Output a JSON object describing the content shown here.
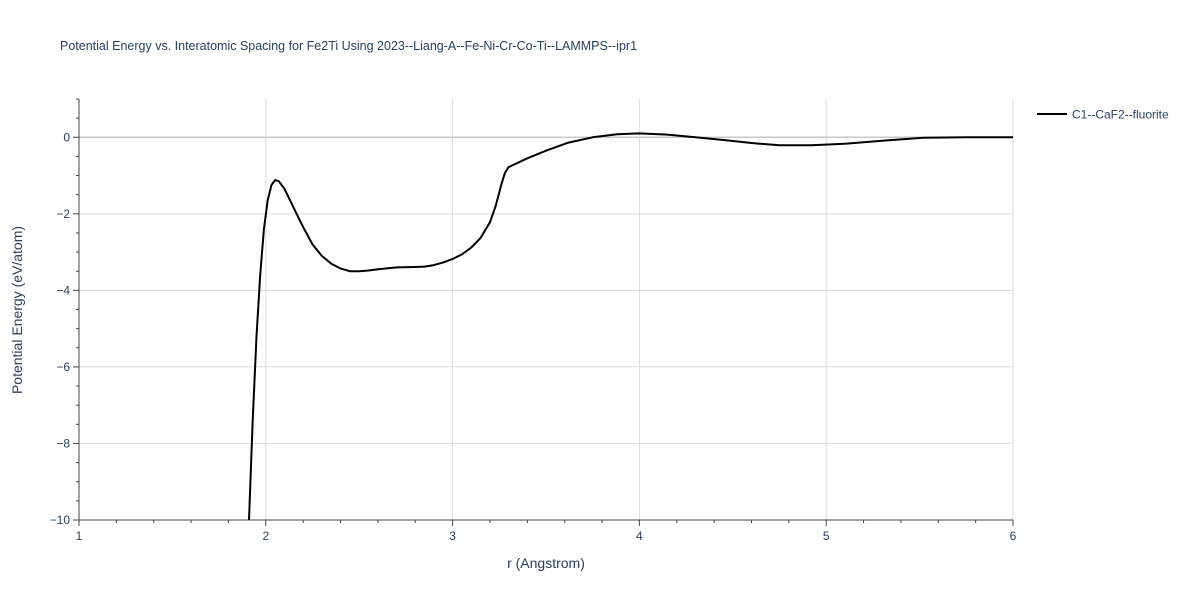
{
  "chart_data": {
    "type": "line",
    "title": "Potential Energy vs. Interatomic Spacing for Fe2Ti Using 2023--Liang-A--Fe-Ni-Cr-Co-Ti--LAMMPS--ipr1",
    "xlabel": "r (Angstrom)",
    "ylabel": "Potential Energy (eV/atom)",
    "xlim": [
      1,
      6
    ],
    "ylim": [
      -10,
      1
    ],
    "xticks": [
      1,
      2,
      3,
      4,
      5,
      6
    ],
    "xtick_labels": [
      "1",
      "2",
      "3",
      "4",
      "5",
      "6"
    ],
    "yticks": [
      -10,
      -8,
      -6,
      -4,
      -2,
      0
    ],
    "ytick_labels": [
      "−10",
      "−8",
      "−6",
      "−4",
      "−2",
      "0"
    ],
    "grid": true,
    "legend": "top-right, outside plot",
    "series": [
      {
        "name": "C1--CaF2--fluorite",
        "color": "#000000",
        "x": [
          1.91,
          1.93,
          1.95,
          1.97,
          1.99,
          2.01,
          2.03,
          2.05,
          2.07,
          2.1,
          2.15,
          2.2,
          2.25,
          2.3,
          2.35,
          2.4,
          2.45,
          2.5,
          2.55,
          2.6,
          2.7,
          2.8,
          2.85,
          2.9,
          2.95,
          3.0,
          3.05,
          3.1,
          3.15,
          3.2,
          3.23,
          3.26,
          3.28,
          3.3,
          3.4,
          3.5,
          3.62,
          3.75,
          3.88,
          4.0,
          4.15,
          4.3,
          4.45,
          4.6,
          4.75,
          4.92,
          5.1,
          5.3,
          5.52,
          5.75,
          6.0
        ],
        "y": [
          -10.0,
          -7.4,
          -5.2,
          -3.6,
          -2.4,
          -1.65,
          -1.25,
          -1.12,
          -1.15,
          -1.35,
          -1.85,
          -2.35,
          -2.8,
          -3.1,
          -3.3,
          -3.43,
          -3.5,
          -3.5,
          -3.48,
          -3.45,
          -3.4,
          -3.39,
          -3.38,
          -3.34,
          -3.27,
          -3.18,
          -3.06,
          -2.88,
          -2.63,
          -2.22,
          -1.8,
          -1.25,
          -0.93,
          -0.78,
          -0.55,
          -0.35,
          -0.14,
          0.0,
          0.08,
          0.1,
          0.07,
          0.0,
          -0.07,
          -0.15,
          -0.21,
          -0.21,
          -0.17,
          -0.09,
          -0.01,
          0.0,
          0.0
        ]
      }
    ]
  }
}
